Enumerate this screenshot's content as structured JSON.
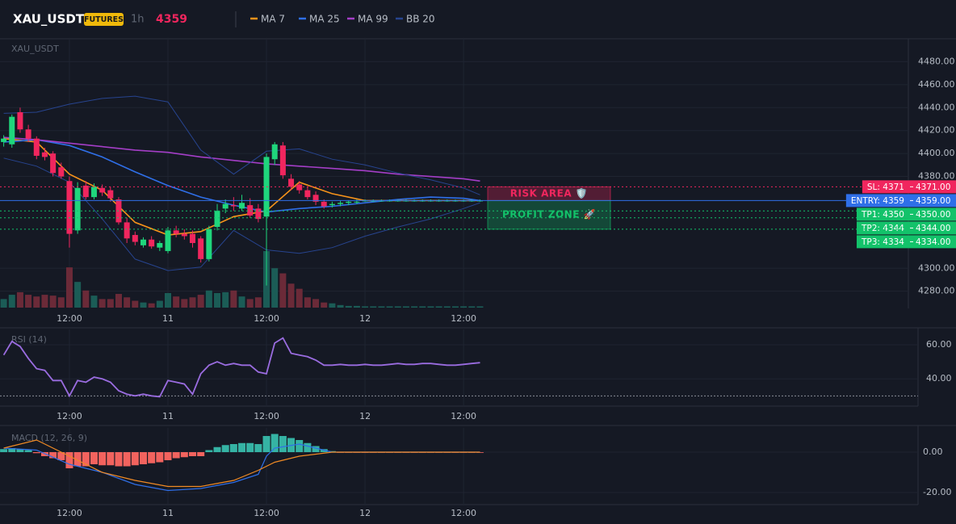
{
  "chart_data": [
    {
      "type": "candlestick",
      "title": "XAU_USDT",
      "badge": "FUTURES",
      "interval": "1h",
      "last_price": 4359,
      "categories": [
        null,
        null,
        null,
        null,
        null,
        null,
        null,
        null,
        "12:00",
        null,
        null,
        null,
        null,
        null,
        null,
        null,
        null,
        null,
        null,
        null,
        "11",
        null,
        null,
        null,
        null,
        null,
        null,
        null,
        null,
        null,
        null,
        null,
        "12:00",
        null,
        null,
        null,
        null,
        null,
        null,
        null,
        null,
        null,
        null,
        null,
        "12",
        null,
        null,
        null,
        null,
        null,
        null,
        null,
        null,
        null,
        null,
        null,
        "12:00",
        null,
        null
      ],
      "open": [
        4410,
        4408,
        4436,
        4421,
        4413,
        4401,
        4400,
        4388,
        4376,
        4333,
        4372,
        4362,
        4370,
        4368,
        4360,
        4340,
        4329,
        4320,
        4325,
        4318,
        4315,
        4333,
        4330,
        4330,
        4326,
        4308,
        4336,
        4352,
        4355,
        4352,
        4355,
        4352,
        4345,
        4395,
        4407,
        4378,
        4373,
        4368,
        4364,
        4358,
        4355,
        4356,
        4357,
        4358,
        4359,
        4359,
        4359,
        4359,
        4359,
        4359,
        4359,
        4359,
        4359,
        4359,
        4359,
        4359,
        4359,
        4359,
        4359
      ],
      "high": [
        4416,
        4434,
        4440,
        4425,
        4415,
        4405,
        4402,
        4392,
        4380,
        4375,
        4376,
        4374,
        4373,
        4371,
        4362,
        4344,
        4332,
        4327,
        4328,
        4324,
        4336,
        4337,
        4334,
        4333,
        4328,
        4337,
        4356,
        4360,
        4362,
        4364,
        4361,
        4356,
        4400,
        4410,
        4410,
        4382,
        4376,
        4371,
        4367,
        4360,
        4358,
        4359,
        4359,
        4360,
        4360,
        4360,
        4360,
        4360,
        4360,
        4360,
        4360,
        4360,
        4360,
        4360,
        4360,
        4360,
        4360,
        4360,
        4360
      ],
      "low": [
        4406,
        4405,
        4418,
        4410,
        4395,
        4394,
        4380,
        4378,
        4318,
        4330,
        4360,
        4360,
        4363,
        4358,
        4338,
        4322,
        4320,
        4318,
        4317,
        4315,
        4313,
        4327,
        4325,
        4318,
        4305,
        4306,
        4333,
        4348,
        4350,
        4350,
        4344,
        4340,
        4285,
        4390,
        4378,
        4368,
        4365,
        4360,
        4355,
        4352,
        4353,
        4354,
        4355,
        4356,
        4358,
        4358,
        4358,
        4358,
        4358,
        4358,
        4358,
        4358,
        4358,
        4358,
        4358,
        4358,
        4358,
        4358,
        4358
      ],
      "close": [
        4413,
        4432,
        4421,
        4413,
        4398,
        4397,
        4383,
        4380,
        4330,
        4370,
        4362,
        4371,
        4366,
        4361,
        4340,
        4326,
        4323,
        4325,
        4319,
        4322,
        4333,
        4330,
        4328,
        4322,
        4308,
        4334,
        4350,
        4356,
        4354,
        4357,
        4346,
        4343,
        4397,
        4408,
        4381,
        4371,
        4368,
        4362,
        4358,
        4354,
        4356,
        4357,
        4358,
        4358,
        4359,
        4359,
        4359,
        4359,
        4359,
        4359,
        4359,
        4359,
        4359,
        4359,
        4359,
        4359,
        4359,
        4359,
        4359
      ],
      "up_color": "#1fd67c",
      "down_color": "#f0265e",
      "volume": {
        "values": [
          10,
          15,
          18,
          15,
          13,
          15,
          14,
          12,
          47,
          30,
          20,
          14,
          10,
          10,
          16,
          12,
          8,
          6,
          5,
          8,
          17,
          13,
          10,
          12,
          15,
          20,
          17,
          18,
          20,
          13,
          10,
          12,
          66,
          46,
          40,
          28,
          22,
          12,
          10,
          6,
          5,
          3,
          2,
          2,
          1.5,
          1.5,
          1.5,
          1.5,
          1.5,
          1.5,
          1.5,
          1.5,
          1.5,
          1.5,
          1.5,
          1.5,
          1.5,
          1.5,
          1.5
        ],
        "up_color": "#1b5c56",
        "down_color": "#6b2a38"
      },
      "overlays": [
        {
          "name": "MA 7",
          "color": "#f7931a",
          "x": [
            0,
            4,
            8,
            12,
            16,
            20,
            24,
            28,
            32,
            36,
            40,
            44,
            48,
            52,
            56,
            58
          ],
          "values": [
            4413,
            4410,
            4382,
            4368,
            4340,
            4329,
            4332,
            4345,
            4350,
            4375,
            4365,
            4359,
            4359,
            4359,
            4359,
            4359
          ]
        },
        {
          "name": "MA 25",
          "color": "#2f6fe8",
          "x": [
            0,
            4,
            8,
            12,
            16,
            20,
            24,
            28,
            32,
            36,
            40,
            44,
            48,
            52,
            56,
            58
          ],
          "values": [
            4410,
            4412,
            4407,
            4397,
            4384,
            4372,
            4362,
            4355,
            4349,
            4352,
            4354,
            4357,
            4360,
            4362,
            4361,
            4359
          ]
        },
        {
          "name": "MA 99",
          "color": "#a43ec7",
          "x": [
            0,
            4,
            8,
            12,
            16,
            20,
            24,
            28,
            32,
            36,
            40,
            44,
            48,
            52,
            56,
            58
          ],
          "values": [
            4414,
            4412,
            4409,
            4406,
            4403,
            4401,
            4397,
            4394,
            4391,
            4389,
            4387,
            4385,
            4382,
            4380,
            4378,
            4376
          ]
        },
        {
          "name": "BB 20",
          "color": "#27448f",
          "x": [
            0,
            4,
            8,
            12,
            16,
            20,
            24,
            28,
            32,
            36,
            40,
            44,
            48,
            52,
            56,
            58
          ],
          "upper": [
            4435,
            4436,
            4443,
            4448,
            4450,
            4445,
            4403,
            4382,
            4402,
            4404,
            4395,
            4390,
            4383,
            4377,
            4370,
            4364
          ],
          "lower": [
            4396,
            4389,
            4375,
            4343,
            4308,
            4298,
            4301,
            4333,
            4316,
            4313,
            4318,
            4328,
            4336,
            4343,
            4352,
            4357
          ]
        }
      ],
      "ylim": [
        4265,
        4500
      ],
      "yticks": [
        {
          "value": 4280,
          "label": "4280.00"
        },
        {
          "value": 4300,
          "label": "4300.00"
        },
        {
          "value": 4380,
          "label": "4380.00"
        },
        {
          "value": 4400,
          "label": "4400.00"
        },
        {
          "value": 4420,
          "label": "4420.00"
        },
        {
          "value": 4440,
          "label": "4440.00"
        },
        {
          "value": 4460,
          "label": "4460.00"
        },
        {
          "value": 4480,
          "label": "4480.00"
        }
      ],
      "levels": [
        {
          "label": "SL: 4371",
          "value": 4371,
          "value_label": "4371.00",
          "color": "#f0265e"
        },
        {
          "label": "ENTRY: 4359",
          "value": 4359,
          "value_label": "4359.00",
          "color": "#2f6fe8"
        },
        {
          "label": "TP1: 4350",
          "value": 4350,
          "value_label": "4350.00",
          "color": "#13c26a"
        },
        {
          "label": "TP2: 4344",
          "value": 4344,
          "value_label": "4344.00",
          "color": "#13c26a"
        },
        {
          "label": "TP3: 4334",
          "value": 4334,
          "value_label": "4334.00",
          "color": "#13c26a"
        }
      ],
      "zones": [
        {
          "label": "RISK AREA 🛡️",
          "from": 4371,
          "to": 4359,
          "color": "#f0265e"
        },
        {
          "label": "PROFIT ZONE 🚀",
          "from": 4359,
          "to": 4334,
          "color": "#13c26a"
        }
      ]
    },
    {
      "type": "line",
      "title": "RSI (14)",
      "categories": [
        null,
        null,
        null,
        null,
        null,
        null,
        null,
        null,
        "12:00",
        null,
        null,
        null,
        null,
        null,
        null,
        null,
        null,
        null,
        null,
        null,
        "11",
        null,
        null,
        null,
        null,
        null,
        null,
        null,
        null,
        null,
        null,
        null,
        "12:00",
        null,
        null,
        null,
        null,
        null,
        null,
        null,
        null,
        null,
        null,
        null,
        "12",
        null,
        null,
        null,
        null,
        null,
        null,
        null,
        null,
        null,
        null,
        null,
        "12:00",
        null,
        null
      ],
      "series": [
        {
          "color": "#9a6ce0",
          "values": [
            54,
            62,
            59,
            52,
            46,
            45,
            39,
            39,
            30,
            39,
            38,
            41,
            40,
            38,
            33,
            31,
            30,
            31,
            30,
            29.5,
            39,
            38,
            37,
            31,
            43,
            48,
            50,
            48,
            49,
            48,
            48,
            44,
            43,
            61,
            64,
            55,
            54,
            53,
            51,
            48,
            48,
            48.5,
            48,
            48,
            48.5,
            48,
            48,
            48.5,
            49,
            48.5,
            48.5,
            49,
            49,
            48.5,
            48,
            48,
            48.5,
            49,
            49.5
          ]
        }
      ],
      "reference": 30,
      "ylim": [
        24,
        69
      ],
      "yticks": [
        {
          "value": 40,
          "label": "40.00"
        },
        {
          "value": 60,
          "label": "60.00"
        }
      ]
    },
    {
      "type": "macd",
      "title": "MACD (12, 26, 9)",
      "categories": [
        null,
        null,
        null,
        null,
        null,
        null,
        null,
        null,
        "12:00",
        null,
        null,
        null,
        null,
        null,
        null,
        null,
        null,
        null,
        null,
        null,
        "11",
        null,
        null,
        null,
        null,
        null,
        null,
        null,
        null,
        null,
        null,
        null,
        "12:00",
        null,
        null,
        null,
        null,
        null,
        null,
        null,
        null,
        null,
        null,
        null,
        "12",
        null,
        null,
        null,
        null,
        null,
        null,
        null,
        null,
        null,
        null,
        null,
        "12:00",
        null,
        null
      ],
      "histogram": {
        "values": [
          1.5,
          2,
          1.5,
          1,
          -0.5,
          -2,
          -3,
          -4,
          -8,
          -7,
          -7,
          -6,
          -6.5,
          -6.5,
          -7,
          -7,
          -6.5,
          -6,
          -5.5,
          -5,
          -4,
          -3,
          -2.5,
          -2,
          -2,
          1,
          2.5,
          3.5,
          4,
          4.5,
          4.5,
          4,
          8,
          9,
          8,
          7,
          6,
          4.5,
          3,
          1.5,
          0.5,
          -0.2,
          -0.2,
          -0.2,
          -0.2,
          -0.2,
          -0.2,
          -0.2,
          -0.2,
          -0.2,
          -0.2,
          -0.2,
          -0.2,
          -0.2,
          -0.2,
          -0.2,
          -0.2,
          -0.2,
          -0.2
        ],
        "up_color": "#35b3a4",
        "down_color": "#f2635e"
      },
      "series": [
        {
          "color": "#2f6fe8",
          "x": [
            0,
            4,
            8,
            12,
            16,
            20,
            24,
            28,
            31,
            32,
            33,
            36,
            40,
            44,
            50,
            58
          ],
          "values": [
            2,
            1,
            -6,
            -10,
            -16,
            -19,
            -18,
            -15,
            -11,
            -2,
            2,
            4,
            0,
            0,
            0,
            0
          ]
        },
        {
          "color": "#f08a24",
          "x": [
            0,
            4,
            8,
            12,
            16,
            20,
            24,
            28,
            31,
            32,
            33,
            36,
            40,
            44,
            50,
            58
          ],
          "values": [
            2,
            6,
            -2,
            -10,
            -14,
            -17,
            -17,
            -14,
            -9,
            -7,
            -5,
            -2,
            0,
            0,
            0,
            0
          ]
        }
      ],
      "ylim": [
        -26,
        12
      ],
      "yticks": [
        {
          "value": -20,
          "label": "-20.00"
        },
        {
          "value": 0,
          "label": "0.00"
        }
      ]
    }
  ]
}
